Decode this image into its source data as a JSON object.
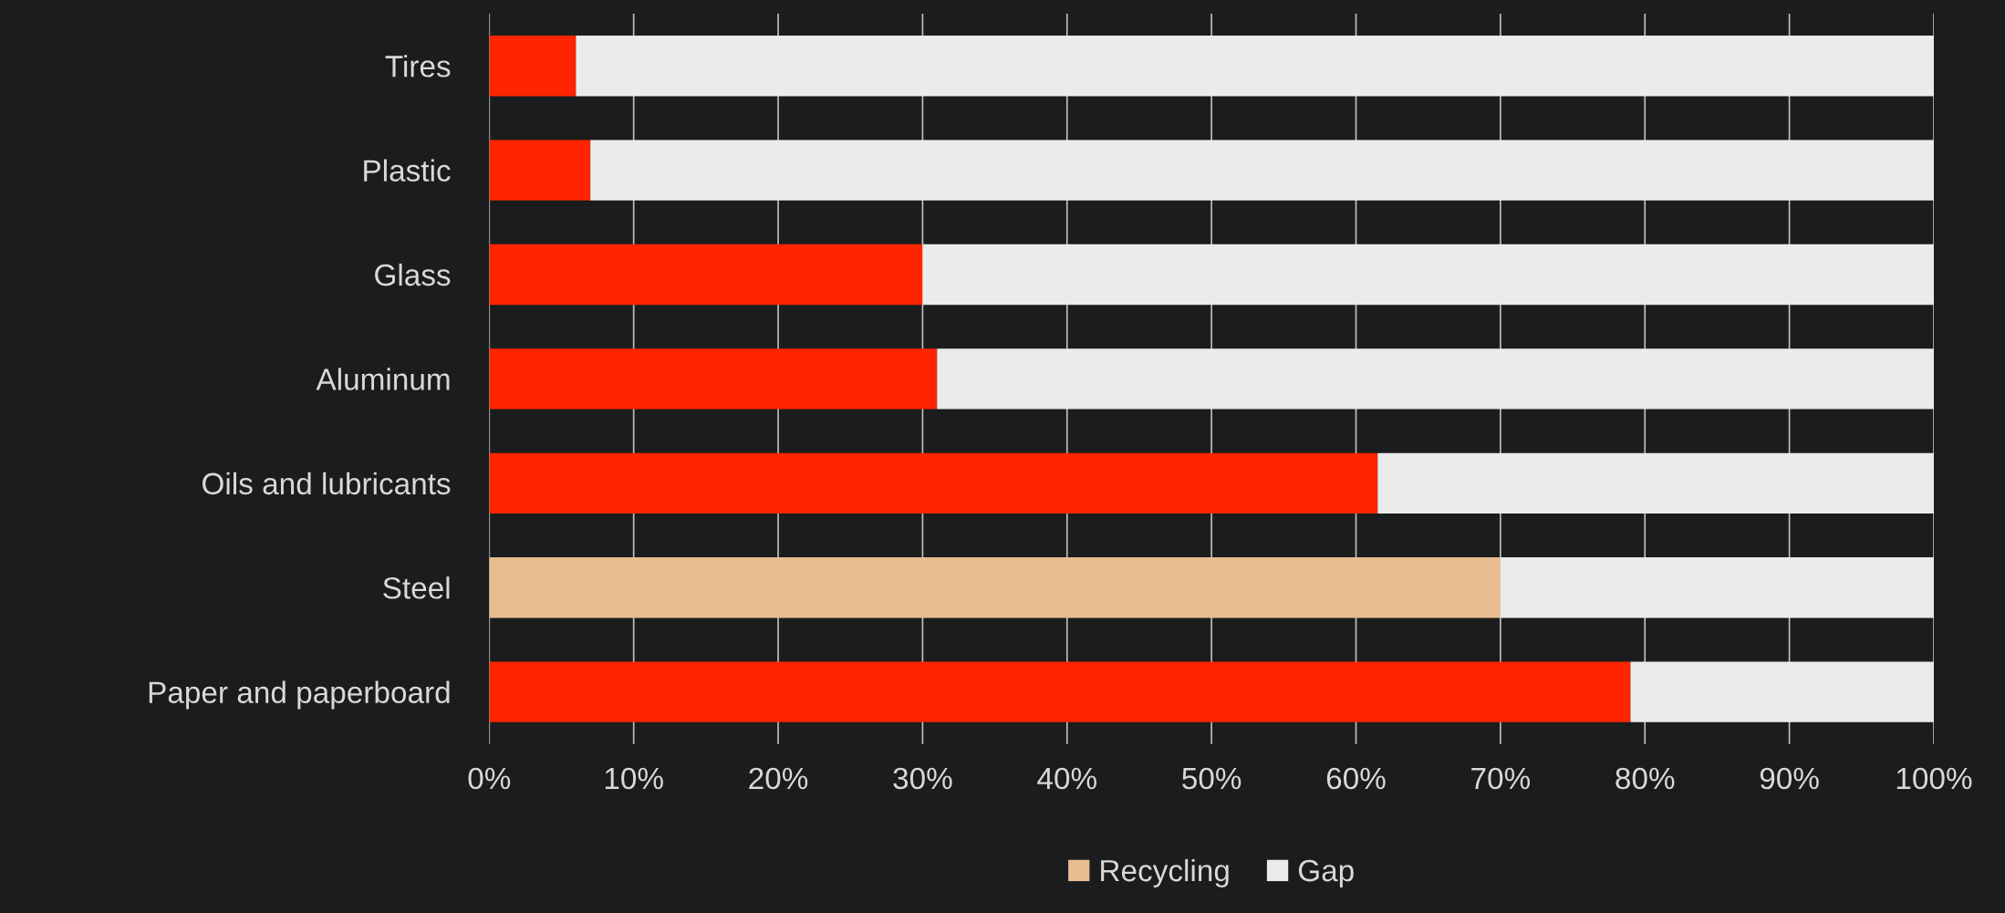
{
  "chart_data": {
    "type": "bar",
    "orientation": "horizontal",
    "stacked": true,
    "categories": [
      "Tires",
      "Plastic",
      "Glass",
      "Aluminum",
      "Oils and lubricants",
      "Steel",
      "Paper and paperboard"
    ],
    "series": [
      {
        "name": "Recycling",
        "color": "#e8bd92",
        "colors": [
          "#ff2500",
          "#ff2500",
          "#ff2500",
          "#ff2500",
          "#ff2500",
          "#e8bd92",
          "#ff2500"
        ],
        "values": [
          6,
          7,
          30,
          31,
          61.5,
          70,
          79
        ]
      },
      {
        "name": "Gap",
        "color": "#ebebeb",
        "values": [
          94,
          93,
          70,
          69,
          38.5,
          30,
          21
        ]
      }
    ],
    "xlim": [
      0,
      100
    ],
    "xticks": [
      {
        "value": 0,
        "label": "0%"
      },
      {
        "value": 10,
        "label": "10%"
      },
      {
        "value": 20,
        "label": "20%"
      },
      {
        "value": 30,
        "label": "30%"
      },
      {
        "value": 40,
        "label": "40%"
      },
      {
        "value": 50,
        "label": "50%"
      },
      {
        "value": 60,
        "label": "60%"
      },
      {
        "value": 70,
        "label": "70%"
      },
      {
        "value": 80,
        "label": "80%"
      },
      {
        "value": 90,
        "label": "90%"
      },
      {
        "value": 100,
        "label": "100%"
      }
    ],
    "grid": "x",
    "legend": "bottom"
  }
}
